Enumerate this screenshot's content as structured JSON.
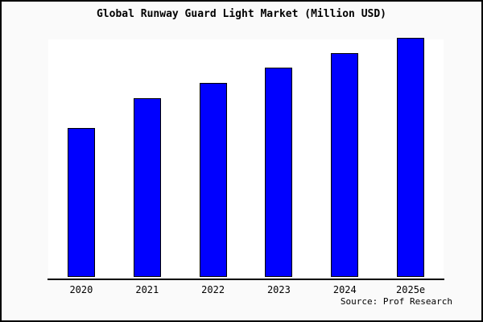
{
  "title": "Global Runway Guard Light Market (Million USD)",
  "source_note": "Source: Prof Research",
  "colors": {
    "page_background": "#fafafa",
    "plot_background": "#ffffff",
    "bar_fill": "#0000ff",
    "bar_border": "#000000",
    "axis_line": "#000000",
    "text": "#000000",
    "frame_border": "#000000"
  },
  "chart_data": {
    "type": "bar",
    "title": "Global Runway Guard Light Market (Million USD)",
    "categories": [
      "2020",
      "2021",
      "2022",
      "2023",
      "2024",
      "2025e"
    ],
    "values_pct_of_max": [
      62.3,
      74.7,
      81.1,
      87.5,
      93.6,
      100.0
    ],
    "xlabel": "",
    "ylabel": "",
    "y_axis": "hidden (no ticks, labels or gridlines shown)",
    "gridlines": false,
    "legend": false,
    "bar_color": "#0000ff",
    "source": "Source: Prof Research"
  }
}
